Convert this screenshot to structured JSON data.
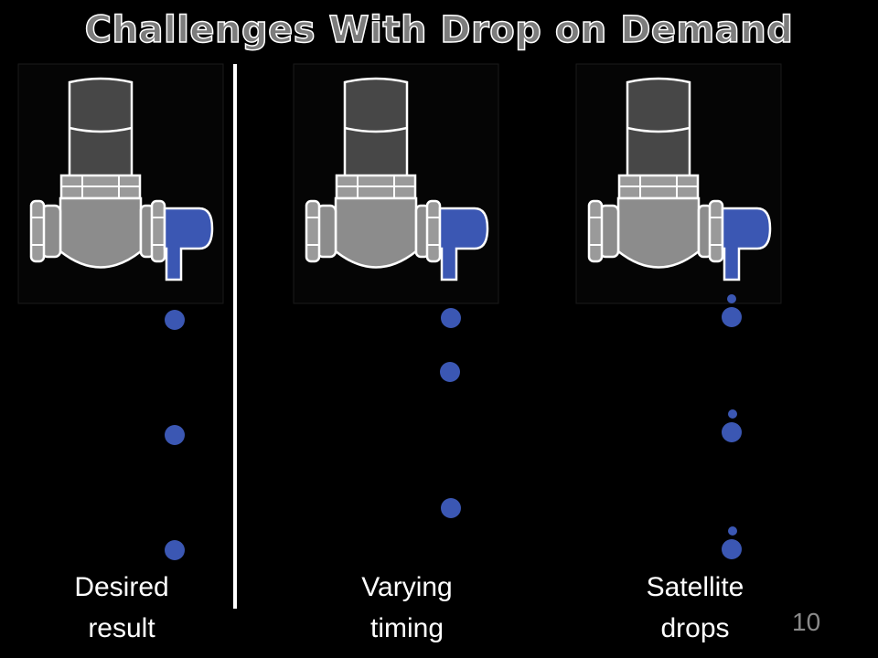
{
  "title": "Challenges With Drop on Demand",
  "panels": [
    {
      "caption_line1": "Desired",
      "caption_line2": "result"
    },
    {
      "caption_line1": "Varying",
      "caption_line2": "timing"
    },
    {
      "caption_line1": "Satellite",
      "caption_line2": "drops"
    }
  ],
  "page_number": "10",
  "colors": {
    "drop": "#3b57b3",
    "background": "#000000",
    "body": "#8c8c8c",
    "cap": "#4a4a4a"
  }
}
